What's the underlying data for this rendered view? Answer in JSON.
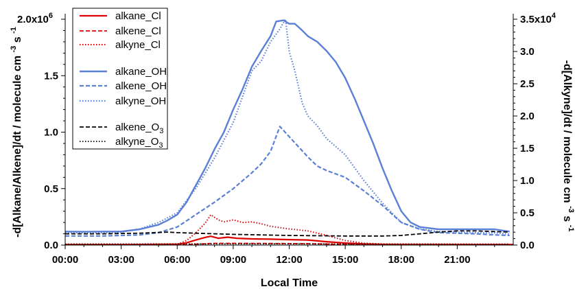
{
  "chart_data": {
    "type": "line",
    "x_unit": "hours",
    "xlabel": "Local Time",
    "ylabel_left": "-d[Alkane/Alkene]/dt / molecule cm",
    "ylabel_left_exp1": "-3",
    "ylabel_left_mid": "s",
    "ylabel_left_exp2": "-1",
    "ylabel_right": "-d[Alkyne]/dt / molecule cm",
    "ylabel_right_exp1": "-3",
    "ylabel_right_mid": "s",
    "ylabel_right_exp2": "-1",
    "xlim": [
      0,
      24
    ],
    "ylim_left": [
      0,
      2000000
    ],
    "ylim_right": [
      0,
      35000
    ],
    "x_ticks": [
      {
        "value": 0,
        "label": "00:00"
      },
      {
        "value": 3,
        "label": "03:00"
      },
      {
        "value": 6,
        "label": "06:00"
      },
      {
        "value": 9,
        "label": "09:00"
      },
      {
        "value": 12,
        "label": "12:00"
      },
      {
        "value": 15,
        "label": "15:00"
      },
      {
        "value": 18,
        "label": "18:00"
      },
      {
        "value": 21,
        "label": "21:00"
      }
    ],
    "y_left_ticks": [
      {
        "value": 0,
        "label": "0.0"
      },
      {
        "value": 500000,
        "label": "0.5"
      },
      {
        "value": 1000000,
        "label": "1.0"
      },
      {
        "value": 1500000,
        "label": "1.5"
      },
      {
        "value": 2000000,
        "label": "2.0x10",
        "exp": "6"
      }
    ],
    "y_right_ticks": [
      {
        "value": 0,
        "label": "0.0"
      },
      {
        "value": 5000,
        "label": "0.5"
      },
      {
        "value": 10000,
        "label": "1.0"
      },
      {
        "value": 15000,
        "label": "1.5"
      },
      {
        "value": 20000,
        "label": "2.0"
      },
      {
        "value": 25000,
        "label": "2.5"
      },
      {
        "value": 30000,
        "label": "3.0"
      },
      {
        "value": 35000,
        "label": "3.5x10",
        "exp": "4"
      }
    ],
    "legend_position": "top-left",
    "series": [
      {
        "name": "alkane_Cl",
        "axis": "left",
        "color": "#dd0000",
        "dash": "solid",
        "width": 2.2,
        "points": [
          [
            0,
            5000
          ],
          [
            3,
            5000
          ],
          [
            6,
            8000
          ],
          [
            6.5,
            20000
          ],
          [
            7,
            45000
          ],
          [
            7.5,
            68000
          ],
          [
            7.8,
            78000
          ],
          [
            8.2,
            60000
          ],
          [
            8.7,
            70000
          ],
          [
            9.2,
            60000
          ],
          [
            10,
            55000
          ],
          [
            11,
            52000
          ],
          [
            12,
            48000
          ],
          [
            13,
            45000
          ],
          [
            14,
            30000
          ],
          [
            15,
            18000
          ],
          [
            16,
            10000
          ],
          [
            17,
            6000
          ],
          [
            18,
            5000
          ],
          [
            24,
            5000
          ]
        ]
      },
      {
        "name": "alkene_Cl",
        "axis": "left",
        "color": "#dd0000",
        "dash": "dashed",
        "width": 1.8,
        "points": [
          [
            0,
            3000
          ],
          [
            6,
            3000
          ],
          [
            7,
            8000
          ],
          [
            8,
            15000
          ],
          [
            9,
            15000
          ],
          [
            11,
            14000
          ],
          [
            13,
            12000
          ],
          [
            15,
            6000
          ],
          [
            17,
            3000
          ],
          [
            24,
            3000
          ]
        ]
      },
      {
        "name": "alkyne_Cl",
        "axis": "right",
        "color": "#dd0000",
        "dash": "dotted",
        "width": 2,
        "points": [
          [
            0,
            50
          ],
          [
            6,
            100
          ],
          [
            6.5,
            700
          ],
          [
            7,
            1900
          ],
          [
            7.5,
            3400
          ],
          [
            7.8,
            4700
          ],
          [
            8.2,
            3900
          ],
          [
            8.5,
            3600
          ],
          [
            9,
            3900
          ],
          [
            9.5,
            3500
          ],
          [
            10,
            3600
          ],
          [
            10.5,
            3300
          ],
          [
            11,
            2900
          ],
          [
            12,
            2500
          ],
          [
            13,
            2200
          ],
          [
            14,
            1500
          ],
          [
            15,
            700
          ],
          [
            16,
            300
          ],
          [
            17,
            150
          ],
          [
            24,
            100
          ]
        ]
      },
      {
        "name": "alkane_OH",
        "axis": "left",
        "color": "#5a7fd6",
        "dash": "solid",
        "width": 2.4,
        "points": [
          [
            0,
            120000
          ],
          [
            1,
            118000
          ],
          [
            2,
            120000
          ],
          [
            3,
            120000
          ],
          [
            4,
            140000
          ],
          [
            5,
            180000
          ],
          [
            5.5,
            220000
          ],
          [
            6,
            270000
          ],
          [
            6.5,
            380000
          ],
          [
            7,
            530000
          ],
          [
            7.5,
            680000
          ],
          [
            8,
            850000
          ],
          [
            8.5,
            1000000
          ],
          [
            9,
            1200000
          ],
          [
            9.5,
            1380000
          ],
          [
            10,
            1580000
          ],
          [
            10.5,
            1720000
          ],
          [
            11,
            1850000
          ],
          [
            11.3,
            1980000
          ],
          [
            11.7,
            1990000
          ],
          [
            12,
            1960000
          ],
          [
            12.3,
            1960000
          ],
          [
            12.7,
            1900000
          ],
          [
            13,
            1850000
          ],
          [
            13.5,
            1800000
          ],
          [
            14,
            1720000
          ],
          [
            14.5,
            1620000
          ],
          [
            15,
            1480000
          ],
          [
            15.5,
            1300000
          ],
          [
            16,
            1100000
          ],
          [
            16.5,
            900000
          ],
          [
            17,
            680000
          ],
          [
            17.5,
            480000
          ],
          [
            18,
            300000
          ],
          [
            18.5,
            200000
          ],
          [
            19,
            160000
          ],
          [
            20,
            140000
          ],
          [
            21,
            140000
          ],
          [
            22,
            140000
          ],
          [
            23,
            140000
          ],
          [
            23.8,
            120000
          ]
        ]
      },
      {
        "name": "alkene_OH",
        "axis": "left",
        "color": "#5a7fd6",
        "dash": "dashed",
        "width": 2.2,
        "points": [
          [
            0,
            80000
          ],
          [
            2,
            80000
          ],
          [
            4,
            90000
          ],
          [
            5,
            110000
          ],
          [
            6,
            160000
          ],
          [
            7,
            270000
          ],
          [
            8,
            380000
          ],
          [
            9,
            500000
          ],
          [
            10,
            640000
          ],
          [
            10.5,
            720000
          ],
          [
            11,
            830000
          ],
          [
            11.5,
            1050000
          ],
          [
            12,
            960000
          ],
          [
            12.5,
            870000
          ],
          [
            13,
            780000
          ],
          [
            13.5,
            700000
          ],
          [
            14,
            660000
          ],
          [
            15,
            600000
          ],
          [
            16,
            480000
          ],
          [
            17,
            350000
          ],
          [
            18,
            200000
          ],
          [
            19,
            140000
          ],
          [
            20,
            110000
          ],
          [
            22,
            100000
          ],
          [
            23,
            90000
          ],
          [
            23.8,
            85000
          ]
        ]
      },
      {
        "name": "alkyne_OH",
        "axis": "right",
        "color": "#5a7fd6",
        "dash": "dotted",
        "width": 2.2,
        "points": [
          [
            0,
            1900
          ],
          [
            2,
            1900
          ],
          [
            3,
            2000
          ],
          [
            4,
            2500
          ],
          [
            5,
            3500
          ],
          [
            6,
            5000
          ],
          [
            7,
            8800
          ],
          [
            8,
            13500
          ],
          [
            9,
            19000
          ],
          [
            9.5,
            23000
          ],
          [
            10,
            27000
          ],
          [
            10.5,
            28500
          ],
          [
            11,
            31500
          ],
          [
            11.5,
            33500
          ],
          [
            11.8,
            35000
          ],
          [
            12,
            30000
          ],
          [
            12.3,
            27000
          ],
          [
            12.7,
            22000
          ],
          [
            13,
            20000
          ],
          [
            13.5,
            18500
          ],
          [
            14,
            16500
          ],
          [
            15,
            14000
          ],
          [
            16,
            10000
          ],
          [
            17,
            6500
          ],
          [
            18,
            3500
          ],
          [
            19,
            2500
          ],
          [
            20,
            2100
          ],
          [
            21,
            2000
          ],
          [
            22,
            1900
          ],
          [
            23,
            1900
          ],
          [
            23.8,
            1700
          ]
        ]
      },
      {
        "name": "alkene_O3",
        "axis": "left",
        "color": "#000000",
        "dash": "dashed",
        "width": 1.8,
        "points": [
          [
            0,
            100000
          ],
          [
            2,
            100000
          ],
          [
            4,
            105000
          ],
          [
            5,
            112000
          ],
          [
            5.5,
            115000
          ],
          [
            6,
            110000
          ],
          [
            7,
            105000
          ],
          [
            9,
            95000
          ],
          [
            12,
            85000
          ],
          [
            15,
            80000
          ],
          [
            17,
            80000
          ],
          [
            18,
            85000
          ],
          [
            19,
            100000
          ],
          [
            20,
            115000
          ],
          [
            21,
            125000
          ],
          [
            22,
            125000
          ],
          [
            23,
            120000
          ],
          [
            23.8,
            115000
          ]
        ]
      },
      {
        "name": "alkyne_O3",
        "axis": "right",
        "color": "#000000",
        "dash": "dotted",
        "width": 1.8,
        "points": [
          [
            0,
            150
          ],
          [
            6,
            170
          ],
          [
            9,
            190
          ],
          [
            12,
            190
          ],
          [
            15,
            170
          ],
          [
            18,
            160
          ],
          [
            21,
            150
          ],
          [
            23.8,
            150
          ]
        ]
      }
    ]
  },
  "legend": {
    "entries": [
      {
        "label": "alkane_Cl",
        "sub": ""
      },
      {
        "label": "alkene_Cl",
        "sub": ""
      },
      {
        "label": "alkyne_Cl",
        "sub": ""
      },
      {
        "label": "alkane_OH",
        "sub": ""
      },
      {
        "label": "alkene_OH",
        "sub": ""
      },
      {
        "label": "alkyne_OH",
        "sub": ""
      },
      {
        "label": "alkene_O",
        "sub": "3"
      },
      {
        "label": "alkyne_O",
        "sub": "3"
      }
    ]
  }
}
